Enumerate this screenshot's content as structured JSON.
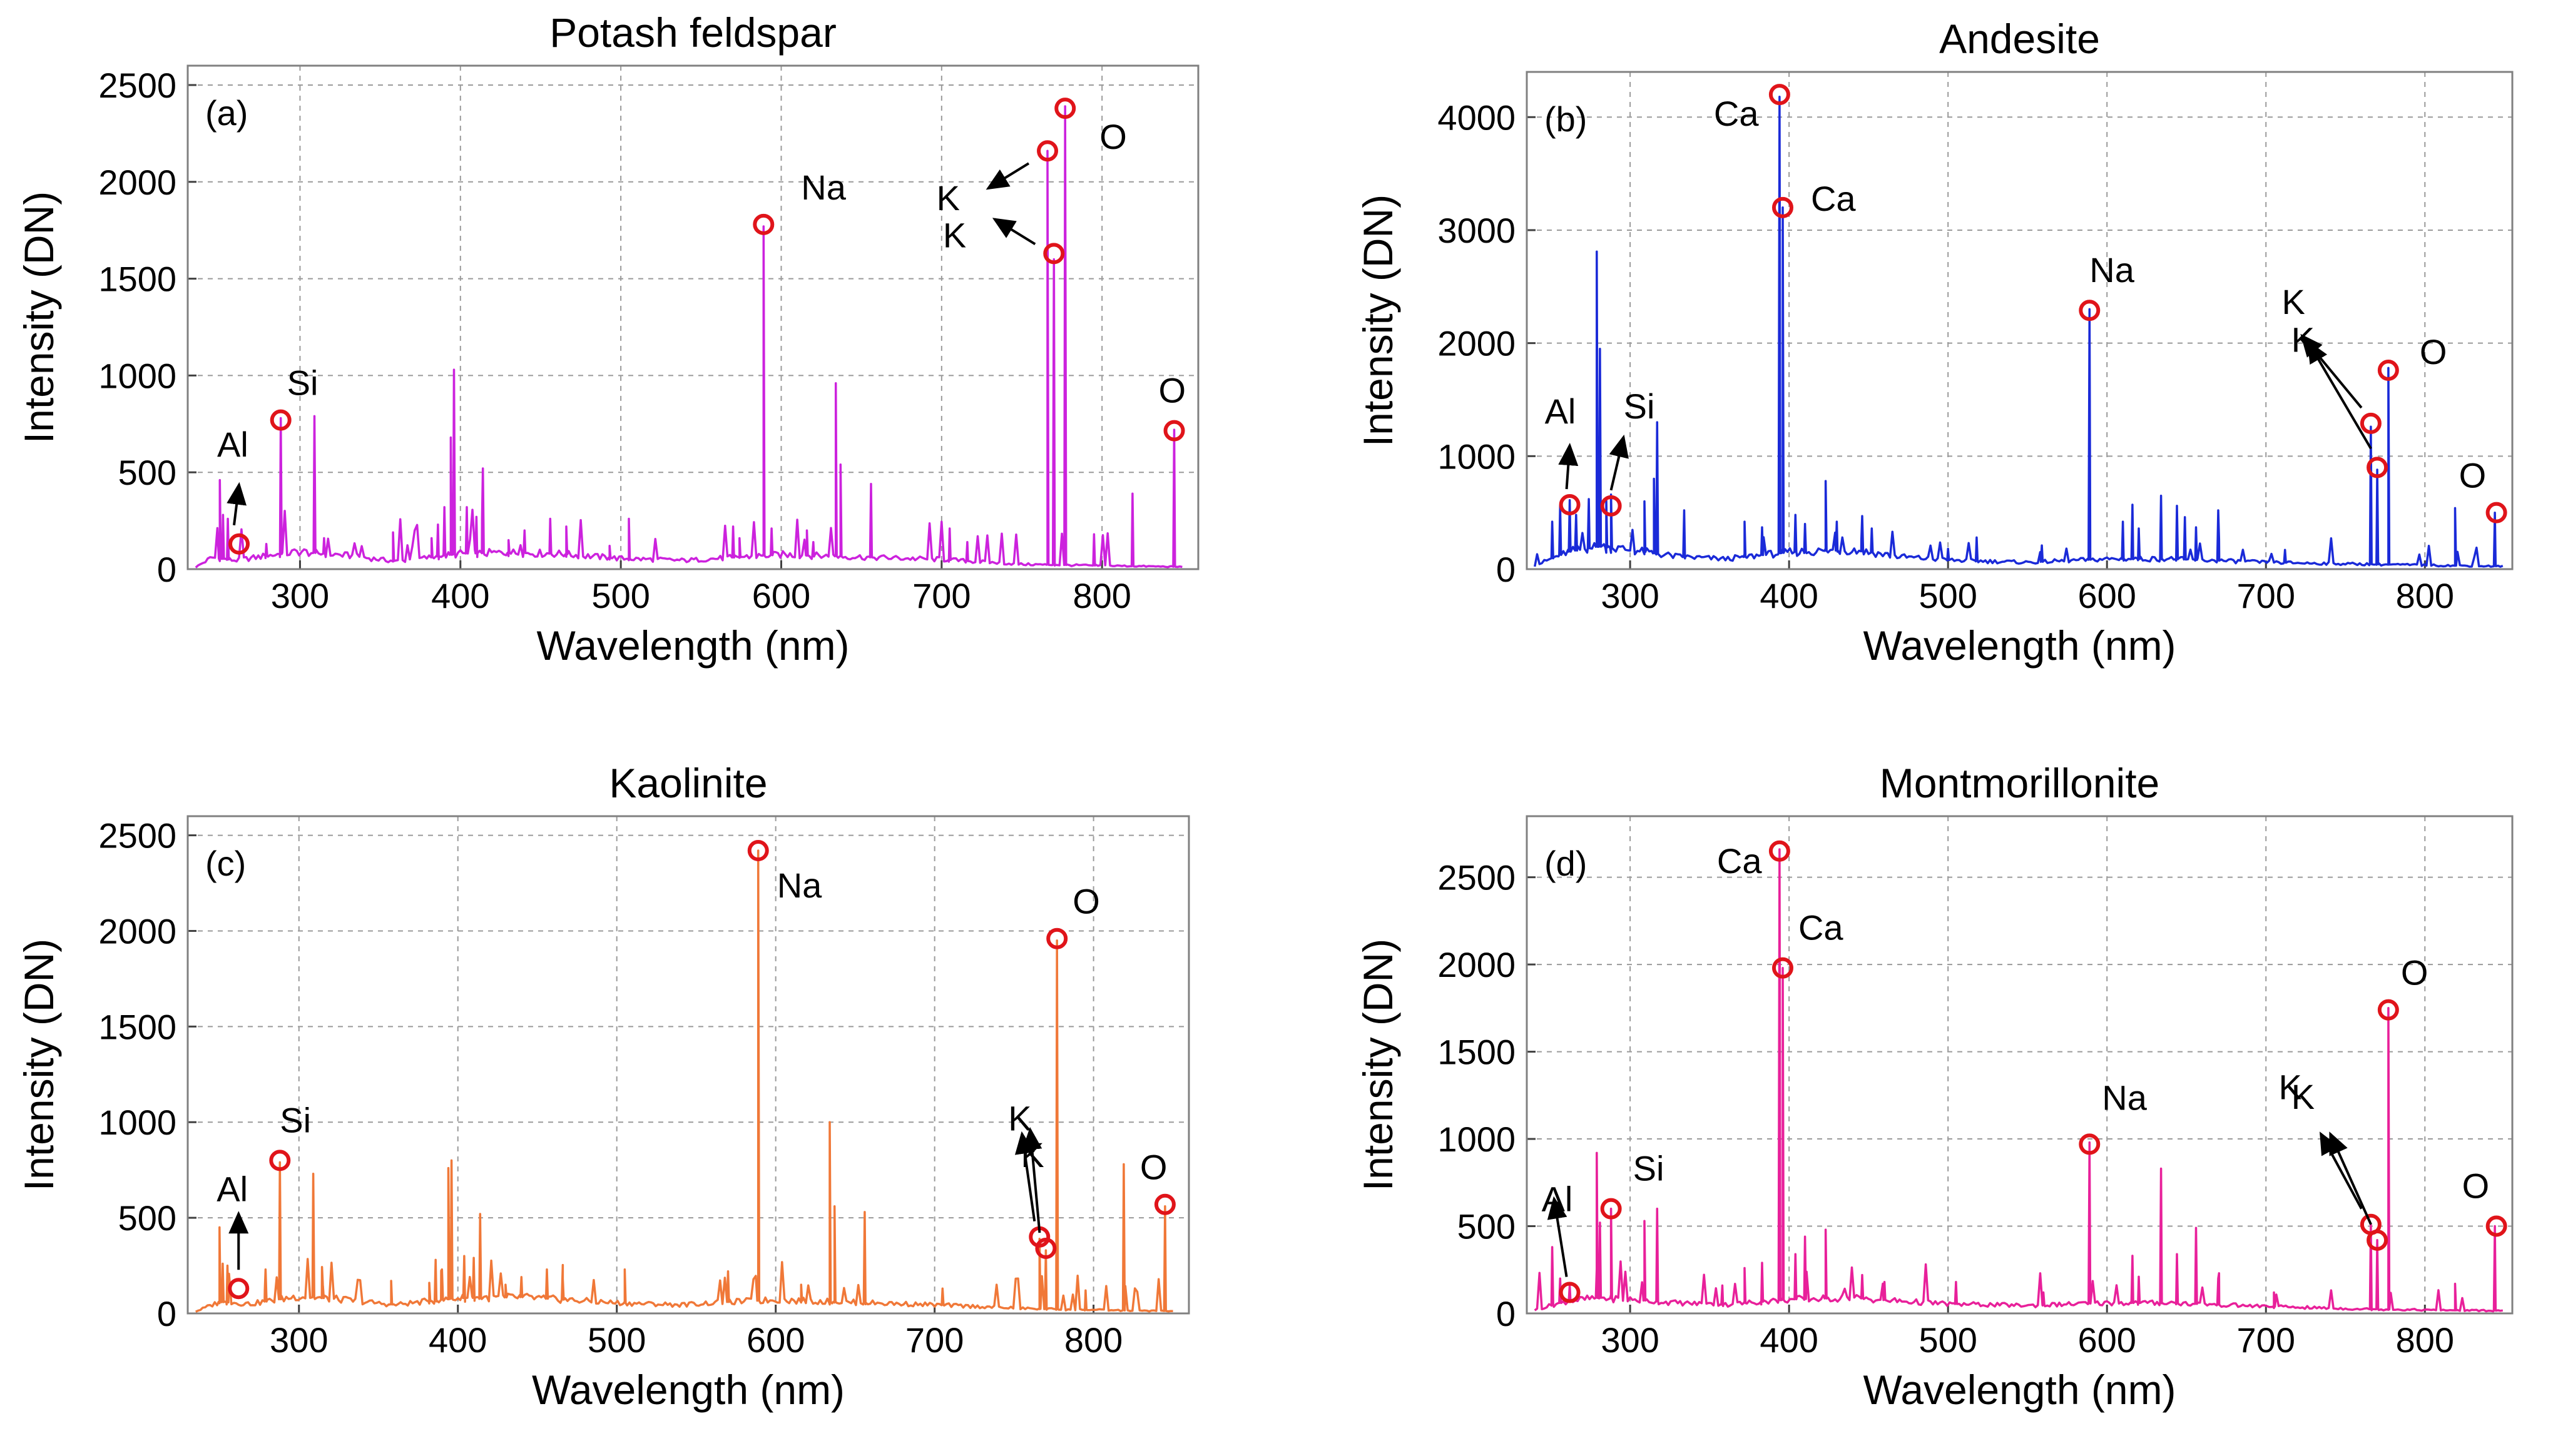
{
  "chart_data": [
    {
      "type": "line",
      "id": "a",
      "title": "Potash feldspar",
      "panel_label": "(a)",
      "xlabel": "Wavelength (nm)",
      "ylabel": "Intensity (DN)",
      "xlim": [
        230,
        860
      ],
      "ylim": [
        0,
        2600
      ],
      "xticks": [
        300,
        400,
        500,
        600,
        700,
        800
      ],
      "yticks": [
        0,
        500,
        1000,
        1500,
        2000,
        2500
      ],
      "color": "#cc22dd",
      "baseline": [
        [
          235,
          10
        ],
        [
          245,
          60
        ],
        [
          260,
          45
        ],
        [
          280,
          70
        ],
        [
          300,
          90
        ],
        [
          330,
          70
        ],
        [
          360,
          40
        ],
        [
          400,
          80
        ],
        [
          430,
          85
        ],
        [
          460,
          80
        ],
        [
          500,
          55
        ],
        [
          540,
          45
        ],
        [
          570,
          60
        ],
        [
          600,
          75
        ],
        [
          640,
          65
        ],
        [
          700,
          50
        ],
        [
          750,
          25
        ],
        [
          800,
          18
        ],
        [
          850,
          12
        ]
      ],
      "peaks": [
        [
          250,
          460
        ],
        [
          252,
          280
        ],
        [
          255,
          260
        ],
        [
          279,
          130
        ],
        [
          288,
          780
        ],
        [
          309,
          790
        ],
        [
          315,
          160
        ],
        [
          358,
          190
        ],
        [
          382,
          160
        ],
        [
          386,
          230
        ],
        [
          390,
          320
        ],
        [
          394,
          680
        ],
        [
          396,
          1030
        ],
        [
          404,
          320
        ],
        [
          410,
          270
        ],
        [
          414,
          520
        ],
        [
          430,
          150
        ],
        [
          440,
          200
        ],
        [
          456,
          260
        ],
        [
          466,
          220
        ],
        [
          493,
          120
        ],
        [
          505,
          260
        ],
        [
          570,
          220
        ],
        [
          574,
          160
        ],
        [
          589,
          1770
        ],
        [
          594,
          210
        ],
        [
          616,
          200
        ],
        [
          620,
          140
        ],
        [
          634,
          960
        ],
        [
          637,
          540
        ],
        [
          656,
          440
        ],
        [
          705,
          210
        ],
        [
          716,
          140
        ],
        [
          766,
          2160
        ],
        [
          770,
          1600
        ],
        [
          777,
          2390
        ],
        [
          795,
          180
        ],
        [
          819,
          390
        ],
        [
          845,
          720
        ]
      ],
      "annotations": [
        {
          "label": "Al",
          "x": 262,
          "y": 130
        },
        {
          "label": "Si",
          "x": 288,
          "y": 770
        },
        {
          "label": "Na",
          "x": 589,
          "y": 1780
        },
        {
          "label": "K",
          "x": 766,
          "y": 2160
        },
        {
          "label": "K",
          "x": 770,
          "y": 1630
        },
        {
          "label": "O",
          "x": 777,
          "y": 2380
        },
        {
          "label": "O",
          "x": 845,
          "y": 715
        }
      ]
    },
    {
      "type": "line",
      "id": "b",
      "title": "Andesite",
      "panel_label": "(b)",
      "xlabel": "Wavelength (nm)",
      "ylabel": "Intensity (DN)",
      "xlim": [
        235,
        855
      ],
      "ylim": [
        0,
        4400
      ],
      "xticks": [
        300,
        400,
        500,
        600,
        700,
        800
      ],
      "yticks": [
        0,
        1000,
        2000,
        3000,
        4000
      ],
      "color": "#1a2ad8",
      "baseline": [
        [
          240,
          30
        ],
        [
          260,
          150
        ],
        [
          280,
          200
        ],
        [
          300,
          170
        ],
        [
          330,
          110
        ],
        [
          360,
          90
        ],
        [
          400,
          150
        ],
        [
          440,
          170
        ],
        [
          470,
          110
        ],
        [
          500,
          80
        ],
        [
          550,
          60
        ],
        [
          600,
          90
        ],
        [
          640,
          90
        ],
        [
          700,
          60
        ],
        [
          760,
          45
        ],
        [
          800,
          35
        ],
        [
          850,
          25
        ]
      ],
      "peaks": [
        [
          251,
          420
        ],
        [
          256,
          560
        ],
        [
          262,
          610
        ],
        [
          266,
          480
        ],
        [
          274,
          620
        ],
        [
          279,
          2810
        ],
        [
          281,
          1950
        ],
        [
          285,
          620
        ],
        [
          288,
          660
        ],
        [
          309,
          600
        ],
        [
          315,
          800
        ],
        [
          317,
          1300
        ],
        [
          334,
          520
        ],
        [
          372,
          420
        ],
        [
          383,
          370
        ],
        [
          394,
          4180
        ],
        [
          396,
          3200
        ],
        [
          404,
          480
        ],
        [
          410,
          400
        ],
        [
          423,
          780
        ],
        [
          430,
          420
        ],
        [
          446,
          470
        ],
        [
          452,
          360
        ],
        [
          500,
          180
        ],
        [
          518,
          280
        ],
        [
          559,
          210
        ],
        [
          589,
          2300
        ],
        [
          610,
          420
        ],
        [
          616,
          570
        ],
        [
          620,
          360
        ],
        [
          634,
          650
        ],
        [
          644,
          560
        ],
        [
          649,
          460
        ],
        [
          656,
          370
        ],
        [
          670,
          520
        ],
        [
          712,
          170
        ],
        [
          766,
          1260
        ],
        [
          770,
          880
        ],
        [
          777,
          1780
        ],
        [
          819,
          540
        ],
        [
          844,
          500
        ]
      ],
      "annotations": [
        {
          "label": "Al",
          "x": 262,
          "y": 570
        },
        {
          "label": "Si",
          "x": 288,
          "y": 560
        },
        {
          "label": "Ca",
          "x": 394,
          "y": 4200
        },
        {
          "label": "Ca",
          "x": 396,
          "y": 3200
        },
        {
          "label": "Na",
          "x": 589,
          "y": 2290
        },
        {
          "label": "K",
          "x": 766,
          "y": 1290
        },
        {
          "label": "K",
          "x": 770,
          "y": 900
        },
        {
          "label": "O",
          "x": 777,
          "y": 1760
        },
        {
          "label": "O",
          "x": 845,
          "y": 500
        }
      ]
    },
    {
      "type": "line",
      "id": "c",
      "title": "Kaolinite",
      "panel_label": "(c)",
      "xlabel": "Wavelength (nm)",
      "ylabel": "Intensity (DN)",
      "xlim": [
        230,
        860
      ],
      "ylim": [
        0,
        2600
      ],
      "xticks": [
        300,
        400,
        500,
        600,
        700,
        800
      ],
      "yticks": [
        0,
        500,
        1000,
        1500,
        2000,
        2500
      ],
      "color": "#f07838",
      "baseline": [
        [
          235,
          10
        ],
        [
          250,
          60
        ],
        [
          270,
          50
        ],
        [
          300,
          90
        ],
        [
          330,
          70
        ],
        [
          360,
          45
        ],
        [
          400,
          80
        ],
        [
          440,
          85
        ],
        [
          470,
          70
        ],
        [
          500,
          55
        ],
        [
          540,
          45
        ],
        [
          570,
          60
        ],
        [
          600,
          70
        ],
        [
          640,
          60
        ],
        [
          700,
          45
        ],
        [
          760,
          25
        ],
        [
          800,
          18
        ],
        [
          850,
          12
        ]
      ],
      "peaks": [
        [
          250,
          450
        ],
        [
          252,
          260
        ],
        [
          255,
          250
        ],
        [
          279,
          230
        ],
        [
          288,
          790
        ],
        [
          309,
          730
        ],
        [
          315,
          150
        ],
        [
          358,
          170
        ],
        [
          382,
          160
        ],
        [
          386,
          280
        ],
        [
          390,
          230
        ],
        [
          394,
          760
        ],
        [
          396,
          800
        ],
        [
          404,
          300
        ],
        [
          410,
          290
        ],
        [
          414,
          520
        ],
        [
          430,
          150
        ],
        [
          440,
          190
        ],
        [
          456,
          230
        ],
        [
          466,
          180
        ],
        [
          505,
          230
        ],
        [
          570,
          220
        ],
        [
          589,
          2420
        ],
        [
          616,
          150
        ],
        [
          634,
          1000
        ],
        [
          637,
          560
        ],
        [
          656,
          530
        ],
        [
          705,
          130
        ],
        [
          766,
          390
        ],
        [
          770,
          330
        ],
        [
          777,
          1950
        ],
        [
          795,
          120
        ],
        [
          819,
          780
        ],
        [
          845,
          560
        ]
      ],
      "annotations": [
        {
          "label": "Al",
          "x": 262,
          "y": 130
        },
        {
          "label": "Si",
          "x": 288,
          "y": 800
        },
        {
          "label": "Na",
          "x": 589,
          "y": 2420
        },
        {
          "label": "K",
          "x": 766,
          "y": 400
        },
        {
          "label": "K",
          "x": 770,
          "y": 340
        },
        {
          "label": "O",
          "x": 777,
          "y": 1960
        },
        {
          "label": "O",
          "x": 845,
          "y": 570
        }
      ]
    },
    {
      "type": "line",
      "id": "d",
      "title": "Montmorillonite",
      "panel_label": "(d)",
      "xlabel": "Wavelength (nm)",
      "ylabel": "Intensity (DN)",
      "xlim": [
        235,
        855
      ],
      "ylim": [
        0,
        2850
      ],
      "xticks": [
        300,
        400,
        500,
        600,
        700,
        800
      ],
      "yticks": [
        0,
        500,
        1000,
        1500,
        2000,
        2500
      ],
      "color": "#e8209a",
      "baseline": [
        [
          240,
          20
        ],
        [
          260,
          70
        ],
        [
          280,
          90
        ],
        [
          300,
          80
        ],
        [
          330,
          60
        ],
        [
          360,
          50
        ],
        [
          400,
          80
        ],
        [
          440,
          90
        ],
        [
          470,
          70
        ],
        [
          500,
          55
        ],
        [
          550,
          45
        ],
        [
          600,
          60
        ],
        [
          640,
          60
        ],
        [
          700,
          40
        ],
        [
          760,
          25
        ],
        [
          800,
          20
        ],
        [
          850,
          15
        ]
      ],
      "peaks": [
        [
          251,
          380
        ],
        [
          256,
          200
        ],
        [
          262,
          160
        ],
        [
          279,
          920
        ],
        [
          281,
          520
        ],
        [
          288,
          600
        ],
        [
          309,
          530
        ],
        [
          317,
          600
        ],
        [
          358,
          160
        ],
        [
          372,
          260
        ],
        [
          383,
          290
        ],
        [
          394,
          2660
        ],
        [
          396,
          1980
        ],
        [
          404,
          340
        ],
        [
          410,
          440
        ],
        [
          423,
          480
        ],
        [
          446,
          220
        ],
        [
          460,
          180
        ],
        [
          505,
          180
        ],
        [
          560,
          120
        ],
        [
          589,
          980
        ],
        [
          616,
          330
        ],
        [
          620,
          210
        ],
        [
          634,
          830
        ],
        [
          644,
          340
        ],
        [
          656,
          490
        ],
        [
          670,
          200
        ],
        [
          705,
          120
        ],
        [
          766,
          510
        ],
        [
          770,
          420
        ],
        [
          777,
          1750
        ],
        [
          819,
          170
        ],
        [
          844,
          500
        ]
      ],
      "annotations": [
        {
          "label": "Al",
          "x": 262,
          "y": 120
        },
        {
          "label": "Si",
          "x": 288,
          "y": 600
        },
        {
          "label": "Ca",
          "x": 394,
          "y": 2650
        },
        {
          "label": "Ca",
          "x": 396,
          "y": 1980
        },
        {
          "label": "Na",
          "x": 589,
          "y": 970
        },
        {
          "label": "K",
          "x": 766,
          "y": 510
        },
        {
          "label": "K",
          "x": 770,
          "y": 420
        },
        {
          "label": "O",
          "x": 777,
          "y": 1740
        },
        {
          "label": "O",
          "x": 845,
          "y": 500
        }
      ]
    }
  ]
}
